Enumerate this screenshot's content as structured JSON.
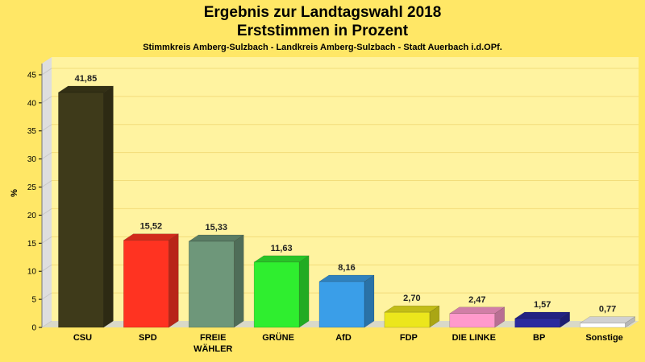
{
  "header": {
    "title": "Ergebnis zur Landtagswahl 2018",
    "subtitle": "Erststimmen in Prozent",
    "region": "Stimmkreis Amberg-Sulzbach - Landkreis Amberg-Sulzbach - Stadt Auerbach i.d.OPf."
  },
  "chart_data": {
    "type": "bar",
    "title": "Ergebnis zur Landtagswahl 2018",
    "subtitle": "Erststimmen in Prozent",
    "ylabel": "%",
    "ylim": [
      0,
      47
    ],
    "yticks": [
      0,
      5,
      10,
      15,
      20,
      25,
      30,
      35,
      40,
      45
    ],
    "grid": true,
    "categories": [
      "CSU",
      "SPD",
      "FREIE WÄHLER",
      "GRÜNE",
      "AfD",
      "FDP",
      "DIE LINKE",
      "BP",
      "Sonstige"
    ],
    "category_lines": [
      [
        "CSU"
      ],
      [
        "SPD"
      ],
      [
        "FREIE",
        "WÄHLER"
      ],
      [
        "GRÜNE"
      ],
      [
        "AfD"
      ],
      [
        "FDP"
      ],
      [
        "DIE LINKE"
      ],
      [
        "BP"
      ],
      [
        "Sonstige"
      ]
    ],
    "values": [
      41.85,
      15.52,
      15.33,
      11.63,
      8.16,
      2.7,
      2.47,
      1.57,
      0.77
    ],
    "value_labels": [
      "41,85",
      "15,52",
      "15,33",
      "11,63",
      "8,16",
      "2,70",
      "2,47",
      "1,57",
      "0,77"
    ],
    "colors": [
      "#3e3a1a",
      "#ff3321",
      "#6e977a",
      "#2fee2f",
      "#3a9ee8",
      "#ece61c",
      "#ff9acc",
      "#2a2a9e",
      "#ffffff"
    ]
  }
}
